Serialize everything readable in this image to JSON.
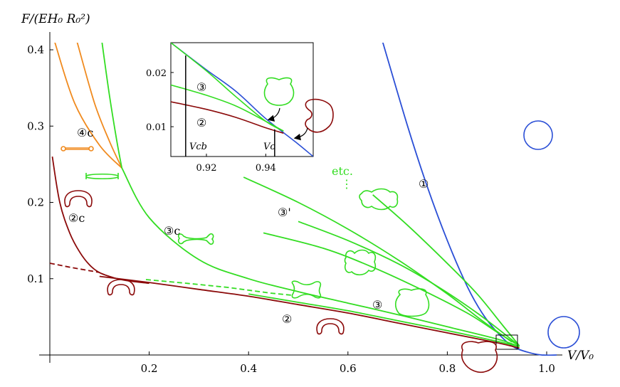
{
  "chart_data": {
    "type": "line",
    "xlabel": "V/V₀",
    "ylabel": "F/(EH₀ R₀²)",
    "xlim": [
      0,
      1.05
    ],
    "ylim": [
      0,
      0.41
    ],
    "x_ticks": [
      "0.2",
      "0.4",
      "0.6",
      "0.8",
      "1.0"
    ],
    "y_ticks": [
      "0.1",
      "0.2",
      "0.3",
      "0.4"
    ],
    "colors": {
      "branch_1": "#2b4fd6",
      "branch_2": "#8b0a0a",
      "branch_3": "#33dd22",
      "branch_4": "#f08a1e"
    },
    "series": [
      {
        "label": "①",
        "color": "#2b4fd6",
        "x": [
          0.67,
          0.72,
          0.76,
          0.8,
          0.84,
          0.87,
          0.9,
          0.93,
          0.96,
          0.99,
          1.02
        ],
        "y": [
          0.41,
          0.3,
          0.22,
          0.15,
          0.09,
          0.055,
          0.03,
          0.012,
          0.004,
          0.0,
          0.0
        ]
      },
      {
        "label": "②",
        "color": "#8b0a0a",
        "x": [
          0.1,
          0.2,
          0.3,
          0.4,
          0.5,
          0.6,
          0.7,
          0.8,
          0.9,
          0.945
        ],
        "y": [
          0.103,
          0.095,
          0.086,
          0.077,
          0.066,
          0.055,
          0.042,
          0.029,
          0.016,
          0.009
        ]
      },
      {
        "label": "②c",
        "color": "#8b0a0a",
        "x": [
          0.005,
          0.02,
          0.04,
          0.06,
          0.08,
          0.1,
          0.13,
          0.16,
          0.2
        ],
        "y": [
          0.26,
          0.2,
          0.16,
          0.135,
          0.118,
          0.108,
          0.101,
          0.097,
          0.094
        ]
      },
      {
        "label": "③",
        "color": "#33dd22",
        "x": [
          0.4,
          0.5,
          0.6,
          0.7,
          0.8,
          0.9,
          0.945
        ],
        "y": [
          0.08,
          0.069,
          0.058,
          0.045,
          0.032,
          0.018,
          0.011
        ]
      },
      {
        "label": "③c",
        "color": "#33dd22",
        "x": [
          0.145,
          0.2,
          0.3,
          0.4,
          0.5,
          0.6,
          0.7,
          0.8,
          0.9,
          0.945
        ],
        "y": [
          0.245,
          0.18,
          0.125,
          0.1,
          0.083,
          0.068,
          0.053,
          0.037,
          0.021,
          0.011
        ]
      },
      {
        "label": "③'",
        "color": "#33dd22",
        "x": [
          0.39,
          0.5,
          0.6,
          0.7,
          0.8,
          0.87,
          0.93
        ],
        "y": [
          0.233,
          0.2,
          0.165,
          0.125,
          0.08,
          0.045,
          0.017
        ]
      },
      {
        "label": "④c",
        "color": "#f08a1e",
        "x": [
          0.01,
          0.05,
          0.1,
          0.145
        ],
        "y": [
          0.41,
          0.33,
          0.275,
          0.245
        ]
      }
    ],
    "labels": [
      "①",
      "②",
      "②c",
      "③",
      "③c",
      "③'",
      "④c",
      "etc.",
      "⋮"
    ],
    "inset": {
      "xlim": [
        0.908,
        0.956
      ],
      "ylim": [
        0.0045,
        0.0255
      ],
      "x_ticks": [
        "0.92",
        "0.94"
      ],
      "y_ticks": [
        "0.01",
        "0.02"
      ],
      "markers": [
        {
          "label": "V_cb",
          "x": 0.913
        },
        {
          "label": "V_c",
          "x": 0.943
        }
      ],
      "series": [
        {
          "label": "①",
          "color": "#2b4fd6",
          "x": [
            0.908,
            0.92,
            0.93,
            0.94,
            0.95,
            0.956
          ],
          "y": [
            0.0255,
            0.0205,
            0.0165,
            0.0115,
            0.0072,
            0.0045
          ]
        },
        {
          "label": "②",
          "color": "#8b0a0a",
          "x": [
            0.908,
            0.92,
            0.93,
            0.94,
            0.946
          ],
          "y": [
            0.0146,
            0.0132,
            0.0117,
            0.0098,
            0.0088
          ]
        },
        {
          "label": "③",
          "color": "#33dd22",
          "x": [
            0.908,
            0.92,
            0.93,
            0.94,
            0.946
          ],
          "y": [
            0.0177,
            0.0158,
            0.0138,
            0.011,
            0.0092
          ]
        },
        {
          "label": "③c",
          "color": "#33dd22",
          "x": [
            0.908,
            0.92,
            0.93,
            0.94,
            0.946
          ],
          "y": [
            0.0255,
            0.0203,
            0.0155,
            0.011,
            0.0092
          ]
        }
      ]
    }
  },
  "text": {
    "ylabel": "F/(EH₀ R₀²)",
    "xlabel": "V/V₀",
    "lbl_1": "①",
    "lbl_2": "②",
    "lbl_2c": "②c",
    "lbl_3": "③",
    "lbl_3c": "③c",
    "lbl_3p": "③'",
    "lbl_4c": "④c",
    "lbl_etc": "etc.",
    "lbl_dots": "⋮",
    "inset_lbl_2": "②",
    "inset_lbl_3": "③",
    "inset_vcb": "Vcb",
    "inset_vc": "Vc"
  }
}
